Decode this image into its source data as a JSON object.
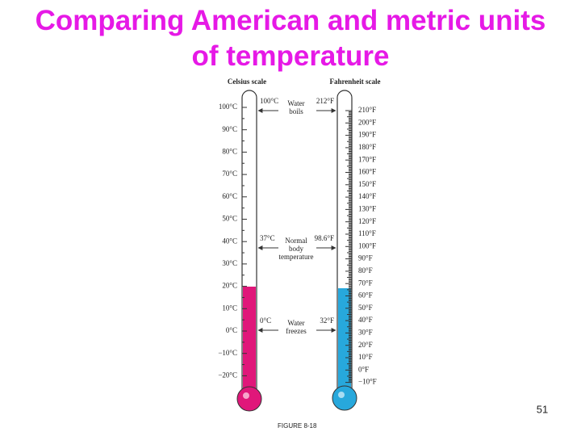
{
  "title": "Comparing American and metric units of temperature",
  "celsius": {
    "label": "Celsius scale",
    "ticks": [
      "100°C",
      "90°C",
      "80°C",
      "70°C",
      "60°C",
      "50°C",
      "40°C",
      "30°C",
      "20°C",
      "10°C",
      "0°C",
      "−10°C",
      "−20°C"
    ]
  },
  "fahrenheit": {
    "label": "Fahrenheit scale",
    "ticks": [
      "210°F",
      "200°F",
      "190°F",
      "180°F",
      "170°F",
      "160°F",
      "150°F",
      "140°F",
      "130°F",
      "120°F",
      "110°F",
      "100°F",
      "90°F",
      "80°F",
      "70°F",
      "60°F",
      "50°F",
      "40°F",
      "30°F",
      "20°F",
      "10°F",
      "0°F",
      "−10°F"
    ]
  },
  "annotations": [
    {
      "celsius": "100°C",
      "fahrenheit": "212°F",
      "lines": [
        "Water",
        "boils"
      ]
    },
    {
      "celsius": "37°C",
      "fahrenheit": "98.6°F",
      "lines": [
        "Normal",
        "body",
        "temperature"
      ]
    },
    {
      "celsius": "0°C",
      "fahrenheit": "32°F",
      "lines": [
        "Water",
        "freezes"
      ]
    }
  ],
  "page_number": "51",
  "caption": "FIGURE 8-18"
}
